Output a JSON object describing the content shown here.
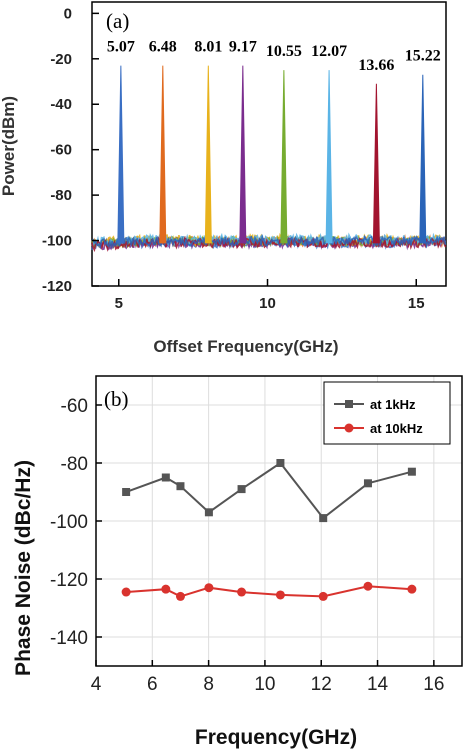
{
  "chart_data": [
    {
      "type": "line",
      "panel_label": "(a)",
      "xlabel": "Offset Frequency(GHz)",
      "ylabel": "Power(dBm)",
      "xlim": [
        4.1,
        16.0
      ],
      "ylim": [
        -120,
        5
      ],
      "xticks": [
        5,
        10,
        15
      ],
      "yticks": [
        0,
        -20,
        -40,
        -60,
        -80,
        -100,
        -120
      ],
      "grid": false,
      "noise_floor_dBm": -101,
      "peaks": [
        {
          "freq": 5.07,
          "label": "5.07",
          "power": -23,
          "color": "#3a6fc4"
        },
        {
          "freq": 6.48,
          "label": "6.48",
          "power": -23,
          "color": "#e06a1f"
        },
        {
          "freq": 8.01,
          "label": "8.01",
          "power": -23,
          "color": "#e8b21c"
        },
        {
          "freq": 9.17,
          "label": "9.17",
          "power": -23,
          "color": "#7b2d8e"
        },
        {
          "freq": 10.55,
          "label": "10.55",
          "power": -25,
          "color": "#77ac30"
        },
        {
          "freq": 12.07,
          "label": "12.07",
          "power": -25,
          "color": "#5ab4e6"
        },
        {
          "freq": 13.66,
          "label": "13.66",
          "power": -31,
          "color": "#a2142f"
        },
        {
          "freq": 15.22,
          "label": "15.22",
          "power": -27,
          "color": "#2a64b8"
        }
      ]
    },
    {
      "type": "line",
      "panel_label": "(b)",
      "xlabel": "Frequency(GHz)",
      "ylabel": "Phase Noise (dBc/Hz)",
      "xlim": [
        4,
        17
      ],
      "ylim": [
        -150,
        -50
      ],
      "xticks": [
        4,
        6,
        8,
        10,
        12,
        14,
        16
      ],
      "yticks": [
        -60,
        -80,
        -100,
        -120,
        -140
      ],
      "grid": true,
      "legend": "top-right",
      "series": [
        {
          "name": "at 1kHz",
          "color": "#555555",
          "marker": "square",
          "x": [
            5.07,
            6.48,
            7.0,
            8.01,
            9.17,
            10.55,
            12.07,
            13.66,
            15.22
          ],
          "y": [
            -90,
            -85,
            -88,
            -97,
            -89,
            -80,
            -99,
            -87,
            -83
          ]
        },
        {
          "name": "at 10kHz",
          "color": "#d9332e",
          "marker": "circle",
          "x": [
            5.07,
            6.48,
            7.0,
            8.01,
            9.17,
            10.55,
            12.07,
            13.66,
            15.22
          ],
          "y": [
            -124.5,
            -123.5,
            -126,
            -123,
            -124.5,
            -125.5,
            -126,
            -122.5,
            -123.5
          ]
        }
      ]
    }
  ]
}
